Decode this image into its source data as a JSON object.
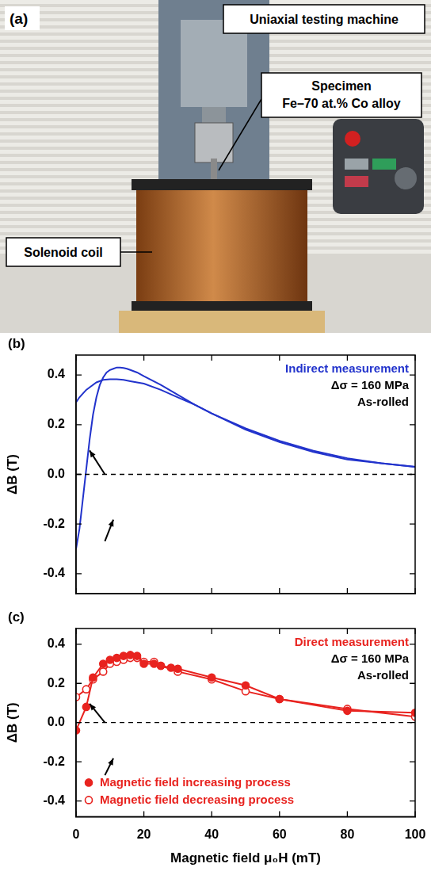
{
  "panel_a": {
    "letter": "(a)",
    "machine": "Uniaxial testing machine",
    "specimen": [
      "Specimen",
      "Fe–70 at.% Co alloy"
    ],
    "coil": "Solenoid coil"
  },
  "chart_data": [
    {
      "type": "line",
      "panel": "(b)",
      "y_label": "ΔB (T)",
      "annotations": [
        {
          "text": "Indirect measurement",
          "color": "#2233cc"
        },
        {
          "text": "Δσ = 160 MPa",
          "color": "#000000"
        },
        {
          "text": "As-rolled",
          "color": "#000000"
        }
      ],
      "xlim": [
        0,
        100
      ],
      "xticks": [
        0,
        20,
        40,
        60,
        80,
        100
      ],
      "ylim": [
        -0.48,
        0.48
      ],
      "yticks": [
        -0.4,
        -0.2,
        {
          "value": 0,
          "label": "0.0"
        },
        0.2,
        0.4
      ],
      "tick_labels": "y",
      "grid": false,
      "reference_line": 0,
      "series": [
        {
          "color": "#2233cc",
          "marker": "none",
          "x": [
            0,
            1,
            2,
            3,
            4,
            5,
            6,
            7,
            8,
            9,
            10,
            11,
            12,
            13,
            14,
            15,
            16,
            18,
            20,
            25,
            30,
            35,
            40,
            50,
            60,
            70,
            80,
            90,
            100
          ],
          "values": [
            -0.3,
            -0.22,
            -0.1,
            0.02,
            0.14,
            0.24,
            0.31,
            0.36,
            0.39,
            0.41,
            0.42,
            0.425,
            0.43,
            0.43,
            0.428,
            0.425,
            0.42,
            0.41,
            0.395,
            0.36,
            0.32,
            0.28,
            0.245,
            0.18,
            0.13,
            0.09,
            0.06,
            0.045,
            0.03
          ]
        },
        {
          "color": "#2233cc",
          "marker": "none",
          "x": [
            100,
            90,
            80,
            70,
            60,
            50,
            40,
            35,
            30,
            25,
            20,
            16,
            14,
            12,
            10,
            8,
            6,
            4,
            3,
            2,
            1,
            0
          ],
          "values": [
            0.03,
            0.045,
            0.065,
            0.095,
            0.135,
            0.185,
            0.245,
            0.28,
            0.31,
            0.34,
            0.365,
            0.375,
            0.38,
            0.383,
            0.383,
            0.38,
            0.37,
            0.35,
            0.34,
            0.325,
            0.31,
            0.29
          ]
        }
      ]
    },
    {
      "type": "line",
      "panel": "(c)",
      "x_label": "Magnetic field μ₀H (mT)",
      "y_label": "ΔB (T)",
      "annotations": [
        {
          "text": "Direct measurement",
          "color": "#e8231f"
        },
        {
          "text": "Δσ = 160 MPa",
          "color": "#000000"
        },
        {
          "text": "As-rolled",
          "color": "#000000"
        }
      ],
      "xlim": [
        0,
        100
      ],
      "xticks": [
        0,
        20,
        40,
        60,
        80,
        100
      ],
      "ylim": [
        -0.48,
        0.48
      ],
      "yticks": [
        -0.4,
        -0.2,
        {
          "value": 0,
          "label": "0.0"
        },
        0.2,
        0.4
      ],
      "grid": false,
      "reference_line": 0,
      "legend": "lower left",
      "series": [
        {
          "name": "Magnetic field increasing process",
          "color": "#e8231f",
          "marker": "circle",
          "x": [
            0,
            3,
            5,
            8,
            10,
            12,
            14,
            16,
            18,
            20,
            23,
            25,
            28,
            30,
            40,
            50,
            60,
            80,
            100
          ],
          "values": [
            -0.04,
            0.08,
            0.23,
            0.3,
            0.32,
            0.33,
            0.34,
            0.345,
            0.34,
            0.3,
            0.3,
            0.29,
            0.28,
            0.275,
            0.23,
            0.19,
            0.12,
            0.06,
            0.05
          ]
        },
        {
          "name": "Magnetic field decreasing process",
          "color": "#e8231f",
          "marker": "open_circle",
          "x": [
            100,
            80,
            60,
            50,
            40,
            30,
            25,
            23,
            20,
            18,
            16,
            14,
            12,
            10,
            8,
            5,
            3,
            0
          ],
          "values": [
            0.03,
            0.07,
            0.12,
            0.16,
            0.22,
            0.26,
            0.29,
            0.31,
            0.31,
            0.33,
            0.33,
            0.32,
            0.31,
            0.3,
            0.26,
            0.22,
            0.17,
            0.13
          ]
        }
      ]
    }
  ]
}
